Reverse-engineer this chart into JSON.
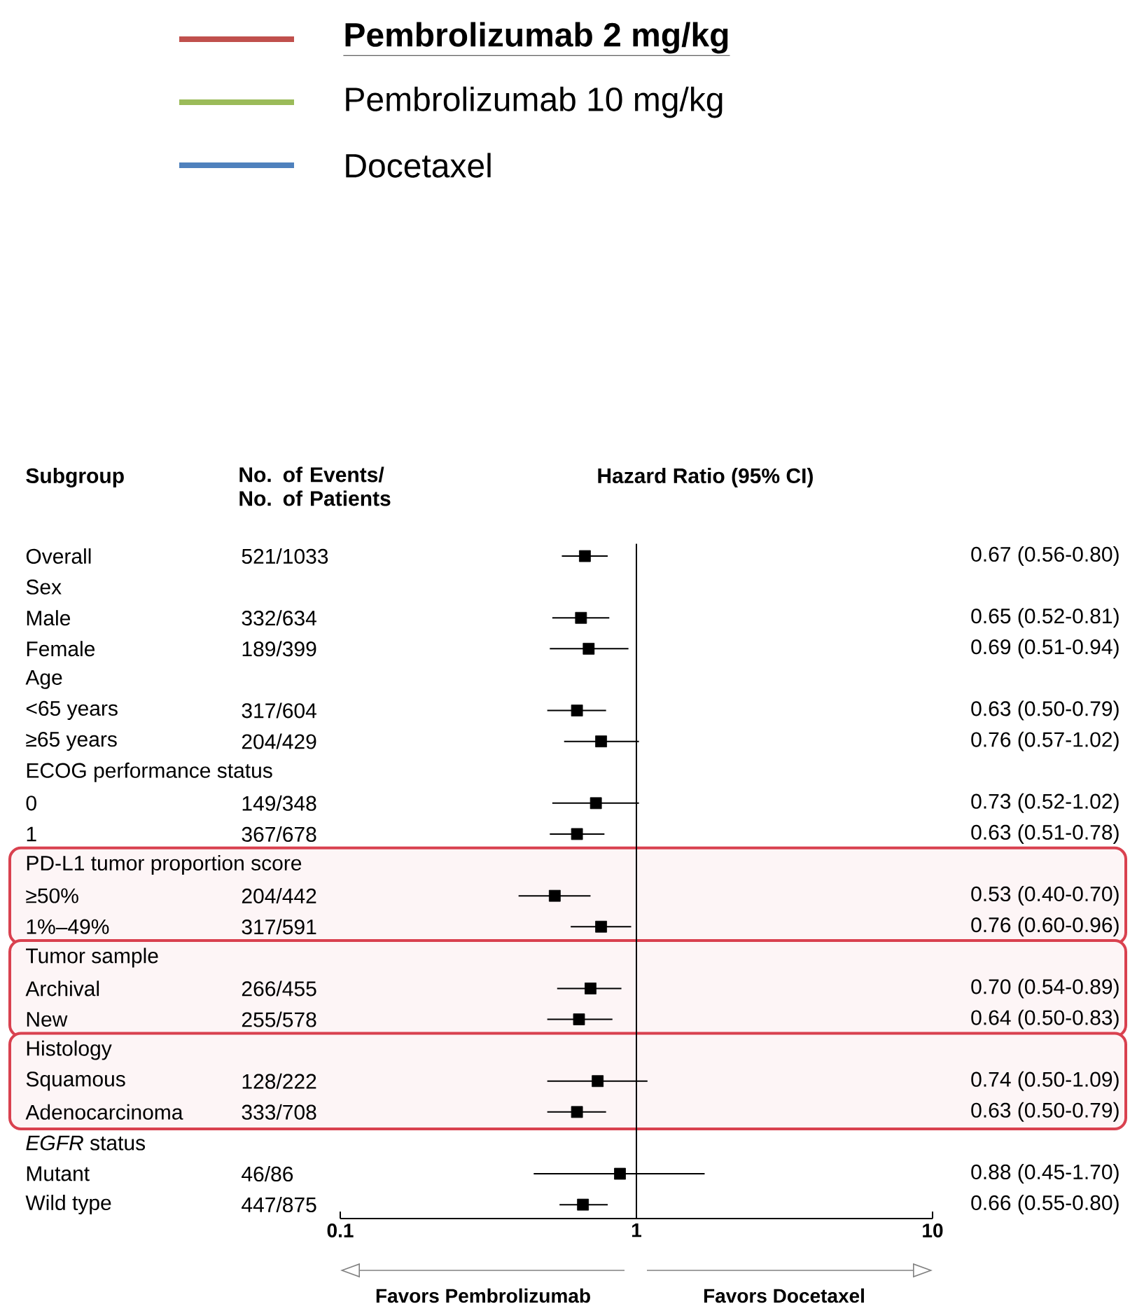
{
  "chart_data": {
    "type": "scatter",
    "orientation": "horizontal",
    "title": "Hazard  Ratio (95% CI)",
    "ylabel": "Subgroup",
    "categories": [
      "Overall",
      "Sex",
      "Male",
      "Female",
      "Age",
      "<65 years",
      "≥65 years",
      "ECOG performance status",
      "0",
      "1",
      "PD-L1 tumor proportion score",
      "≥50%",
      "1%–49%",
      "Tumor sample",
      "Archival",
      "New",
      "Histology",
      "Squamous",
      "Adenocarcinoma",
      "*EGFR* status",
      "Mutant",
      "Wild type"
    ],
    "series": [
      {
        "color": "#000000",
        "values": [
          0.67,
          null,
          0.65,
          0.69,
          null,
          0.63,
          0.76,
          null,
          0.73,
          0.63,
          null,
          0.53,
          0.76,
          null,
          0.7,
          0.64,
          null,
          0.74,
          0.63,
          null,
          0.88,
          0.66
        ],
        "errors": [
          [
            0.56,
            0.8
          ],
          null,
          [
            0.52,
            0.81
          ],
          [
            0.51,
            0.94
          ],
          null,
          [
            0.5,
            0.79
          ],
          [
            0.57,
            1.02
          ],
          null,
          [
            0.52,
            1.02
          ],
          [
            0.51,
            0.78
          ],
          null,
          [
            0.4,
            0.7
          ],
          [
            0.6,
            0.96
          ],
          null,
          [
            0.54,
            0.89
          ],
          [
            0.5,
            0.83
          ],
          null,
          [
            0.5,
            1.09
          ],
          [
            0.5,
            0.79
          ],
          null,
          [
            0.45,
            1.7
          ],
          [
            0.55,
            0.8
          ]
        ],
        "value_labels": [
          "0.67 (0.56-0.80)",
          null,
          "0.65 (0.52-0.81)",
          "0.69 (0.51-0.94)",
          null,
          "0.63 (0.50-0.79)",
          "0.76 (0.57-1.02)",
          null,
          "0.73 (0.52-1.02)",
          "0.63 (0.51-0.78)",
          null,
          "0.53 (0.40-0.70)",
          "0.76 (0.60-0.96)",
          null,
          "0.70 (0.54-0.89)",
          "0.64 (0.50-0.83)",
          null,
          "0.74 (0.50-1.09)",
          "0.63 (0.50-0.79)",
          null,
          "0.88 (0.45-1.70)",
          "0.66 (0.55-0.80)"
        ]
      },
      {
        "name": "Pembrolizumab 2 mg/kg",
        "color": "#c0504d",
        "values": [
          null,
          null,
          null,
          null,
          null,
          null,
          null,
          null,
          null,
          null,
          null,
          null,
          null,
          null,
          null,
          null,
          null,
          null,
          null,
          null,
          null,
          null
        ]
      },
      {
        "name": "Pembrolizumab 10 mg/kg",
        "color": "#9bbb59",
        "values": [
          null,
          null,
          null,
          null,
          null,
          null,
          null,
          null,
          null,
          null,
          null,
          null,
          null,
          null,
          null,
          null,
          null,
          null,
          null,
          null,
          null,
          null
        ]
      },
      {
        "name": "Docetaxel",
        "color": "#4f81bd",
        "values": [
          null,
          null,
          null,
          null,
          null,
          null,
          null,
          null,
          null,
          null,
          null,
          null,
          null,
          null,
          null,
          null,
          null,
          null,
          null,
          null,
          null,
          null
        ]
      }
    ],
    "marker": "square",
    "log": "x",
    "xlim": [
      0.1,
      10
    ],
    "xticks": [
      0.1,
      1,
      10
    ],
    "legend": "top",
    "ref_lines": [
      {
        "axis": "x",
        "value": 1
      }
    ],
    "bands": [
      {
        "axis": "y",
        "from": "PD-L1 tumor proportion score",
        "to": "1%–49%"
      },
      {
        "axis": "y",
        "from": "Tumor sample",
        "to": "New"
      },
      {
        "axis": "y",
        "from": "Histology",
        "to": "Adenocarcinoma"
      }
    ],
    "annotations": [
      "No. of Events/ No. of Patients",
      "Favors Pembrolizumab",
      "Favors Docetaxel",
      "521/1033",
      "332/634",
      "189/399",
      "317/604",
      "204/429",
      "149/348",
      "367/678",
      "204/442",
      "317/591",
      "266/455",
      "255/578",
      "128/222",
      "333/708",
      "46/86",
      "447/875"
    ]
  }
}
